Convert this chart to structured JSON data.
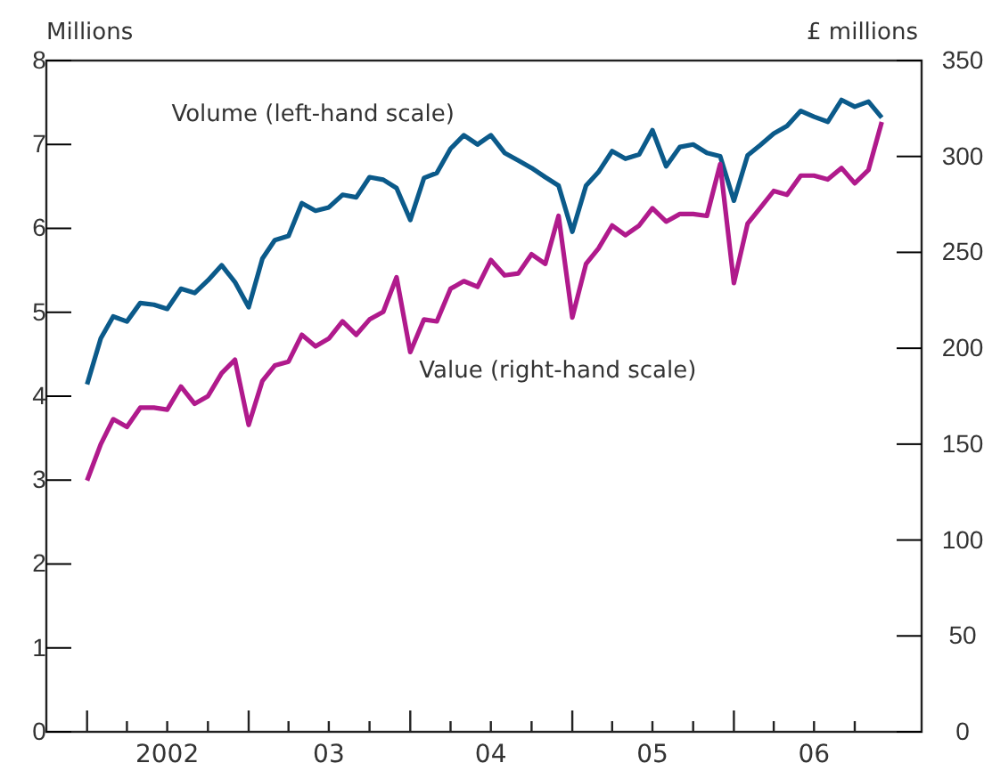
{
  "chart_data": {
    "type": "line",
    "ylabel": "Millions",
    "y2label": "£ millions",
    "x": [
      "2002-01",
      "2002-02",
      "2002-03",
      "2002-04",
      "2002-05",
      "2002-06",
      "2002-07",
      "2002-08",
      "2002-09",
      "2002-10",
      "2002-11",
      "2002-12",
      "2003-01",
      "2003-02",
      "2003-03",
      "2003-04",
      "2003-05",
      "2003-06",
      "2003-07",
      "2003-08",
      "2003-09",
      "2003-10",
      "2003-11",
      "2003-12",
      "2004-01",
      "2004-02",
      "2004-03",
      "2004-04",
      "2004-05",
      "2004-06",
      "2004-07",
      "2004-08",
      "2004-09",
      "2004-10",
      "2004-11",
      "2004-12",
      "2005-01",
      "2005-02",
      "2005-03",
      "2005-04",
      "2005-05",
      "2005-06",
      "2005-07",
      "2005-08",
      "2005-09",
      "2005-10",
      "2005-11",
      "2005-12",
      "2006-01",
      "2006-02",
      "2006-03",
      "2006-04",
      "2006-05",
      "2006-06",
      "2006-07",
      "2006-08",
      "2006-09",
      "2006-10",
      "2006-11",
      "2006-12"
    ],
    "series": [
      {
        "name": "Volume (left-hand scale)",
        "color": "#0b5a8a",
        "values": [
          4.14,
          4.69,
          4.95,
          4.89,
          5.11,
          5.09,
          5.04,
          5.28,
          5.23,
          5.38,
          5.56,
          5.36,
          5.06,
          5.64,
          5.86,
          5.91,
          6.3,
          6.21,
          6.25,
          6.4,
          6.37,
          6.61,
          6.58,
          6.48,
          6.1,
          6.6,
          6.66,
          6.95,
          7.11,
          7.0,
          7.11,
          6.9,
          6.81,
          6.72,
          6.61,
          6.51,
          5.96,
          6.51,
          6.67,
          6.92,
          6.83,
          6.88,
          7.17,
          6.74,
          6.97,
          7.0,
          6.9,
          6.86,
          6.33,
          6.87,
          6.99,
          7.13,
          7.22,
          7.4,
          7.33,
          7.27,
          7.53,
          7.45,
          7.51,
          7.32
        ]
      },
      {
        "name": "Value (right-hand scale)",
        "color": "#b01a8c",
        "axis": "y2",
        "values": [
          131,
          150,
          163,
          159,
          169,
          169,
          168,
          180,
          171,
          175,
          187,
          194,
          160,
          183,
          191,
          193,
          207,
          201,
          205,
          214,
          207,
          215,
          219,
          237,
          198,
          215,
          214,
          231,
          235,
          232,
          246,
          238,
          239,
          249,
          244,
          269,
          216,
          244,
          252,
          264,
          259,
          264,
          273,
          266,
          270,
          270,
          269,
          296,
          234,
          265,
          273,
          282,
          280,
          290,
          290,
          288,
          294,
          286,
          293,
          318
        ]
      }
    ],
    "xlim": [
      "2001-10",
      "2007-03"
    ],
    "xticks": [
      {
        "value": "2002-01",
        "label": null
      },
      {
        "value": "2002-04",
        "label": null
      },
      {
        "value": "2002-07",
        "label": "2002"
      },
      {
        "value": "2002-10",
        "label": null
      },
      {
        "value": "2003-01",
        "label": null
      },
      {
        "value": "2003-04",
        "label": null
      },
      {
        "value": "2003-07",
        "label": "03"
      },
      {
        "value": "2003-10",
        "label": null
      },
      {
        "value": "2004-01",
        "label": null
      },
      {
        "value": "2004-04",
        "label": null
      },
      {
        "value": "2004-07",
        "label": "04"
      },
      {
        "value": "2004-10",
        "label": null
      },
      {
        "value": "2005-01",
        "label": null
      },
      {
        "value": "2005-04",
        "label": null
      },
      {
        "value": "2005-07",
        "label": "05"
      },
      {
        "value": "2005-10",
        "label": null
      },
      {
        "value": "2006-01",
        "label": null
      },
      {
        "value": "2006-04",
        "label": null
      },
      {
        "value": "2006-07",
        "label": "06"
      },
      {
        "value": "2006-10",
        "label": null
      }
    ],
    "ylim": [
      0,
      8
    ],
    "yticks": [
      0,
      1,
      2,
      3,
      4,
      5,
      6,
      7,
      8
    ],
    "y2lim": [
      0,
      350
    ],
    "y2ticks": [
      0,
      50,
      100,
      150,
      200,
      250,
      300,
      350
    ],
    "grid": false,
    "legend": false,
    "marker": "none",
    "line_style": "solid"
  }
}
